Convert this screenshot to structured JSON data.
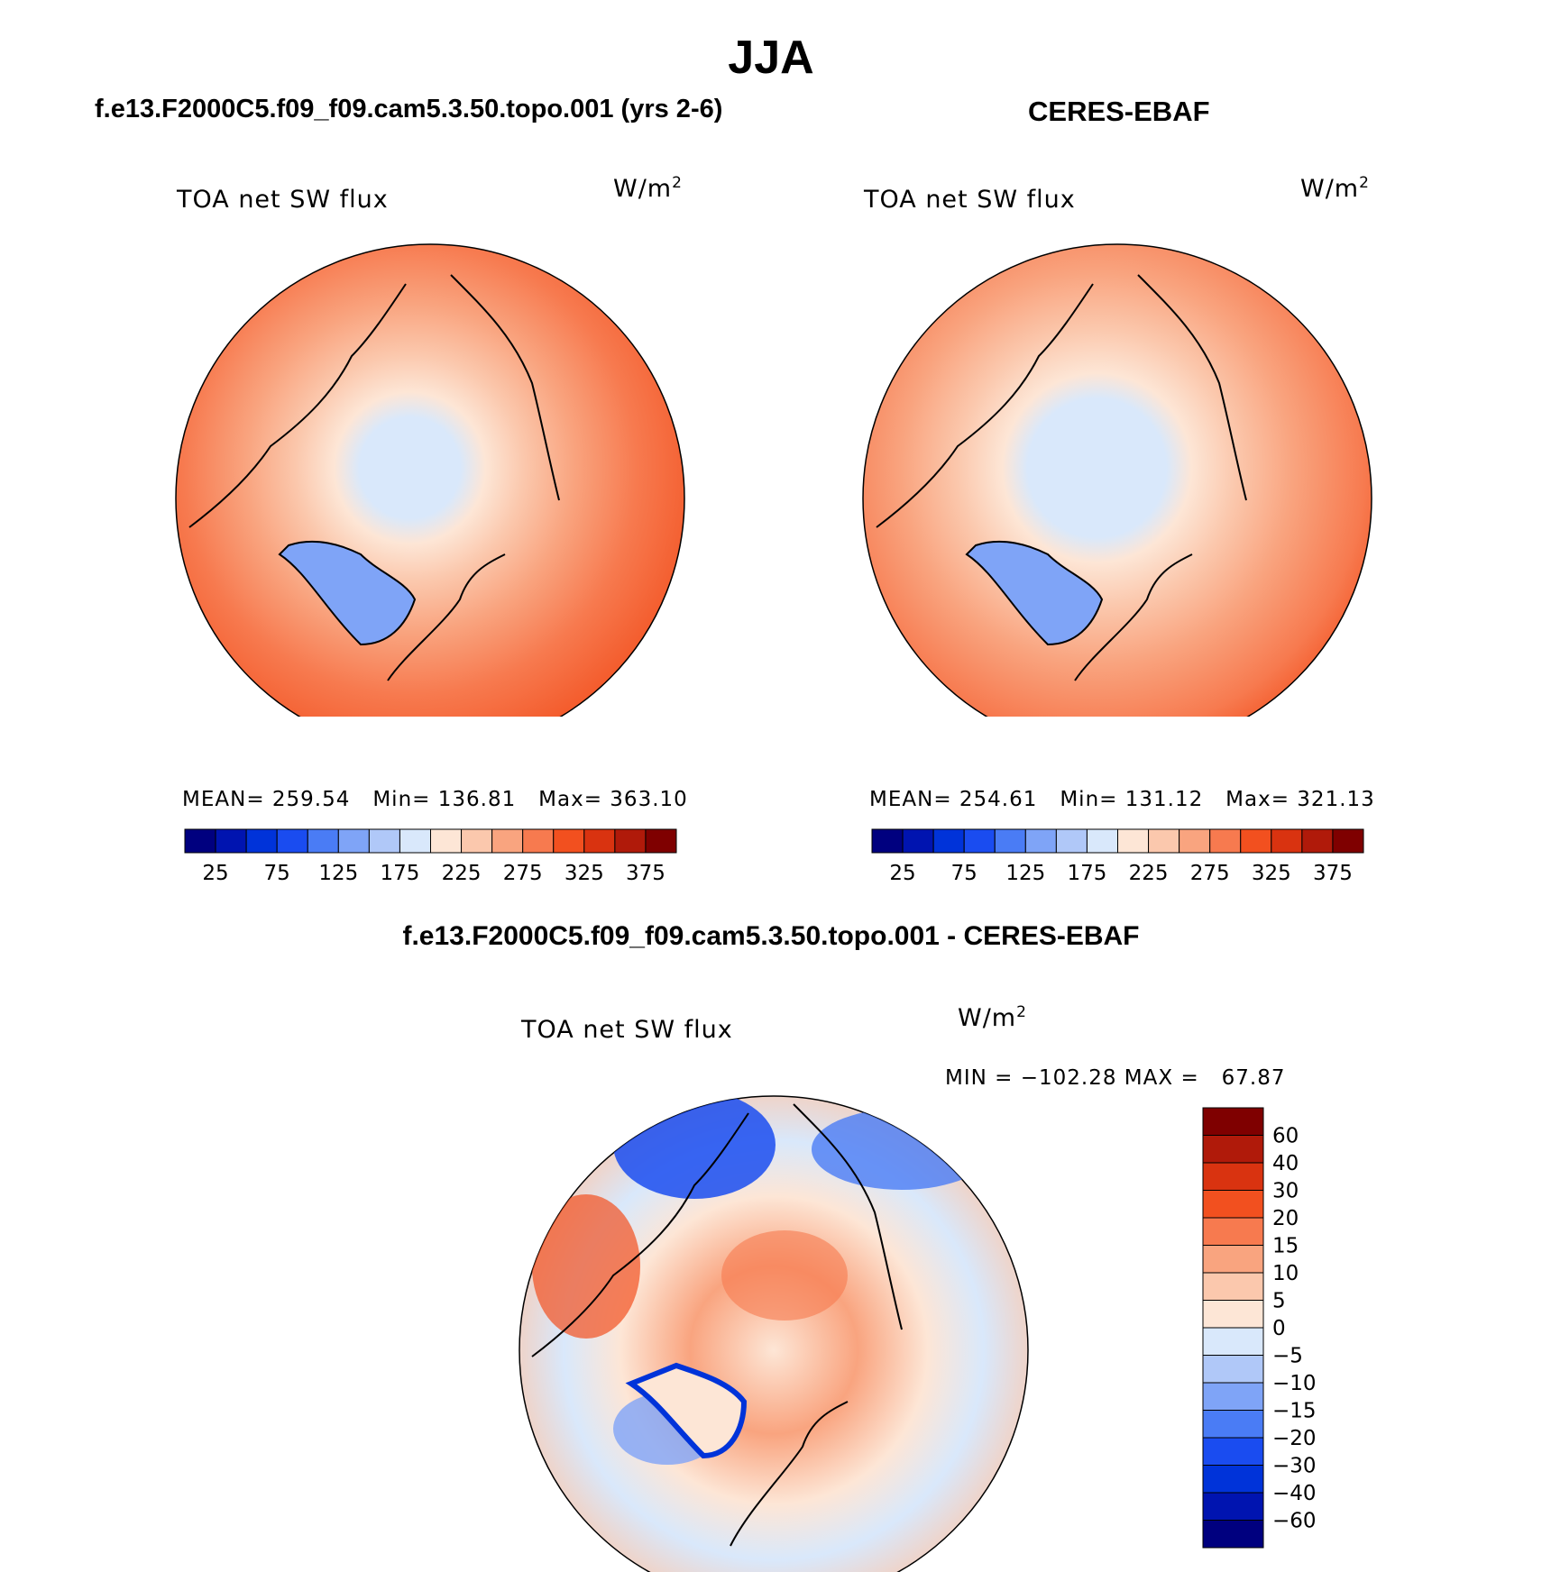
{
  "page": {
    "main_title": "JJA",
    "left_title": "f.e13.F2000C5.f09_f09.cam5.3.50.topo.001 (yrs 2-6)",
    "right_title": "CERES-EBAF",
    "bottom_title": "f.e13.F2000C5.f09_f09.cam5.3.50.topo.001 - CERES-EBAF"
  },
  "panels": {
    "model": {
      "variable": "TOA net SW flux",
      "units": "W/m",
      "units_sup": "2",
      "stats": {
        "mean_label": "MEAN=",
        "mean": "259.54",
        "min_label": "Min=",
        "min": "136.81",
        "max_label": "Max=",
        "max": "363.10"
      }
    },
    "obs": {
      "variable": "TOA net SW flux",
      "units": "W/m",
      "units_sup": "2",
      "stats": {
        "mean_label": "MEAN=",
        "mean": "254.61",
        "min_label": "Min=",
        "min": "131.12",
        "max_label": "Max=",
        "max": "321.13"
      }
    },
    "diff": {
      "variable": "TOA net SW flux",
      "units": "W/m",
      "units_sup": "2",
      "stats": {
        "min_label": "MIN =",
        "min": "−102.28",
        "max_label": "MAX =",
        "max": "67.87"
      }
    }
  },
  "colorbar_abs": {
    "colors": [
      "#00007f",
      "#0014b0",
      "#0033d9",
      "#1a4cf0",
      "#4a7cf5",
      "#7fa4f7",
      "#b0c8f8",
      "#d9e8fb",
      "#fde6d6",
      "#fbc8ad",
      "#f9a47f",
      "#f77a4f",
      "#f2501f",
      "#d93310",
      "#b01a0a",
      "#7f0000"
    ],
    "tick_labels": [
      "25",
      "75",
      "125",
      "175",
      "225",
      "275",
      "325",
      "375"
    ]
  },
  "colorbar_diff": {
    "colors": [
      "#7f0000",
      "#b01a0a",
      "#d93310",
      "#f2501f",
      "#f77a4f",
      "#f9a47f",
      "#fbc8ad",
      "#fde6d6",
      "#d9e8fb",
      "#b0c8f8",
      "#7fa4f7",
      "#4a7cf5",
      "#1a4cf0",
      "#0033d9",
      "#0014b0",
      "#00007f"
    ],
    "tick_labels": [
      "60",
      "40",
      "30",
      "20",
      "15",
      "10",
      "5",
      "0",
      "−5",
      "−10",
      "−15",
      "−20",
      "−30",
      "−40",
      "−60"
    ]
  }
}
